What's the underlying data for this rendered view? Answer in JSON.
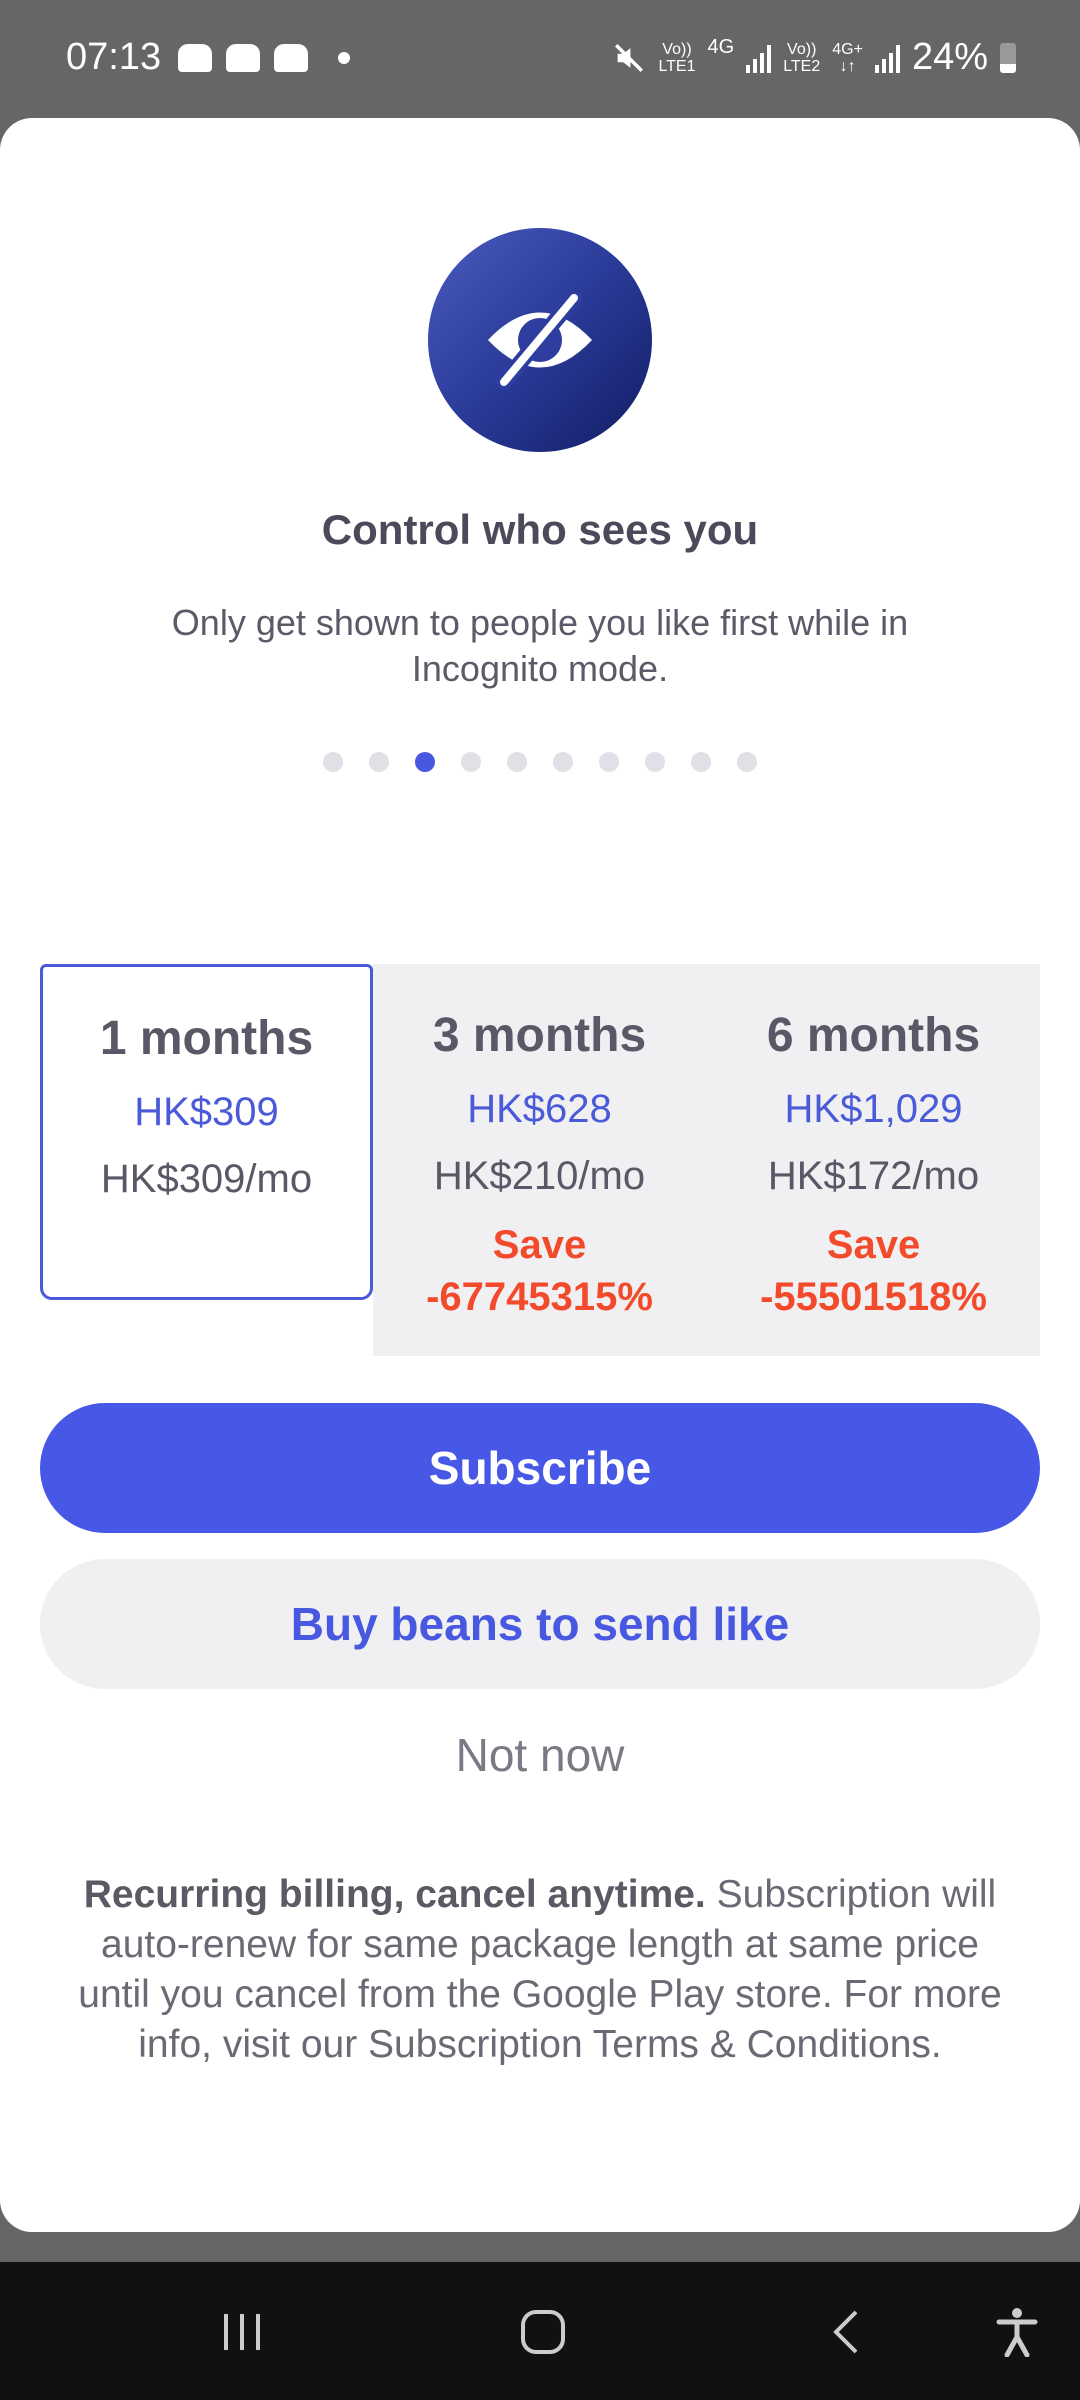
{
  "status_bar": {
    "time": "07:13",
    "notification_icons": [
      "game-controller-icon",
      "game-controller-icon",
      "game-controller-icon",
      "dot-icon"
    ],
    "sim1_label_top": "Vo))",
    "sim1_label_bottom": "LTE1",
    "sim1_network": "4G",
    "sim2_label_top": "Vo))",
    "sim2_label_bottom": "LTE2",
    "sim2_network": "4G+",
    "sim2_arrows": "↓↑",
    "battery": "24%"
  },
  "hero": {
    "icon": "eye-off-icon",
    "title": "Control who sees you",
    "subtitle": "Only get shown to people you like first while in Incognito mode.",
    "carousel_pages": 10,
    "carousel_active_index": 2
  },
  "plans": [
    {
      "length": "1 months",
      "price": "HK$309",
      "per_month": "HK$309/mo",
      "save_label": "",
      "save_value": "",
      "selected": true
    },
    {
      "length": "3 months",
      "price": "HK$628",
      "per_month": "HK$210/mo",
      "save_label": "Save",
      "save_value": "-67745315%",
      "selected": false
    },
    {
      "length": "6 months",
      "price": "HK$1,029",
      "per_month": "HK$172/mo",
      "save_label": "Save",
      "save_value": "-55501518%",
      "selected": false
    }
  ],
  "actions": {
    "subscribe": "Subscribe",
    "buy_beans": "Buy beans to send like",
    "not_now": "Not now"
  },
  "footer": {
    "bold": "Recurring billing, cancel anytime.",
    "text": " Subscription will auto-renew for same package length at same price until you cancel from the Google Play store. For more info, visit our Subscription Terms & Conditions."
  },
  "colors": {
    "accent": "#4858e6",
    "save": "#f24a2a",
    "icon_gradient_start": "#4a5cc0",
    "icon_gradient_end": "#121d63"
  },
  "navbar": {
    "icons": [
      "recent-apps-icon",
      "home-icon",
      "back-icon",
      "accessibility-icon"
    ]
  }
}
